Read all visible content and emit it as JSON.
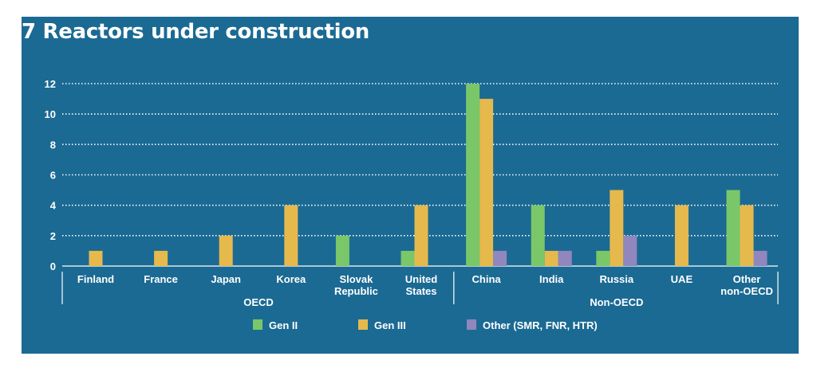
{
  "title": "7 Reactors under construction",
  "colors": {
    "background": "#1b6a93",
    "gen2": "#7ac769",
    "gen3": "#e6b94d",
    "other": "#8f87bd",
    "text": "#ffffff"
  },
  "chart_data": {
    "type": "bar",
    "title": "7 Reactors under construction",
    "categories": [
      [
        "Finland"
      ],
      [
        "France"
      ],
      [
        "Japan"
      ],
      [
        "Korea"
      ],
      [
        "Slovak",
        "Republic"
      ],
      [
        "United",
        "States"
      ],
      [
        "China"
      ],
      [
        "India"
      ],
      [
        "Russia"
      ],
      [
        "UAE"
      ],
      [
        "Other",
        "non-OECD"
      ]
    ],
    "groups": [
      {
        "label": "OECD",
        "categories": [
          0,
          1,
          2,
          3,
          4,
          5
        ]
      },
      {
        "label": "Non-OECD",
        "categories": [
          6,
          7,
          8,
          9,
          10
        ]
      }
    ],
    "series": [
      {
        "name": "Gen II",
        "color": "#7ac769",
        "values": [
          0,
          0,
          0,
          0,
          2,
          1,
          12,
          4,
          1,
          0,
          5
        ]
      },
      {
        "name": "Gen III",
        "color": "#e6b94d",
        "values": [
          1,
          1,
          2,
          4,
          0,
          4,
          11,
          1,
          5,
          4,
          4
        ]
      },
      {
        "name": "Other (SMR, FNR, HTR)",
        "color": "#8f87bd",
        "values": [
          0,
          0,
          0,
          0,
          0,
          0,
          1,
          1,
          2,
          0,
          1
        ]
      }
    ],
    "yticks": [
      0,
      2,
      4,
      6,
      8,
      10,
      12
    ],
    "ylim": [
      0,
      12
    ],
    "grid": true,
    "legend": "bottom"
  }
}
